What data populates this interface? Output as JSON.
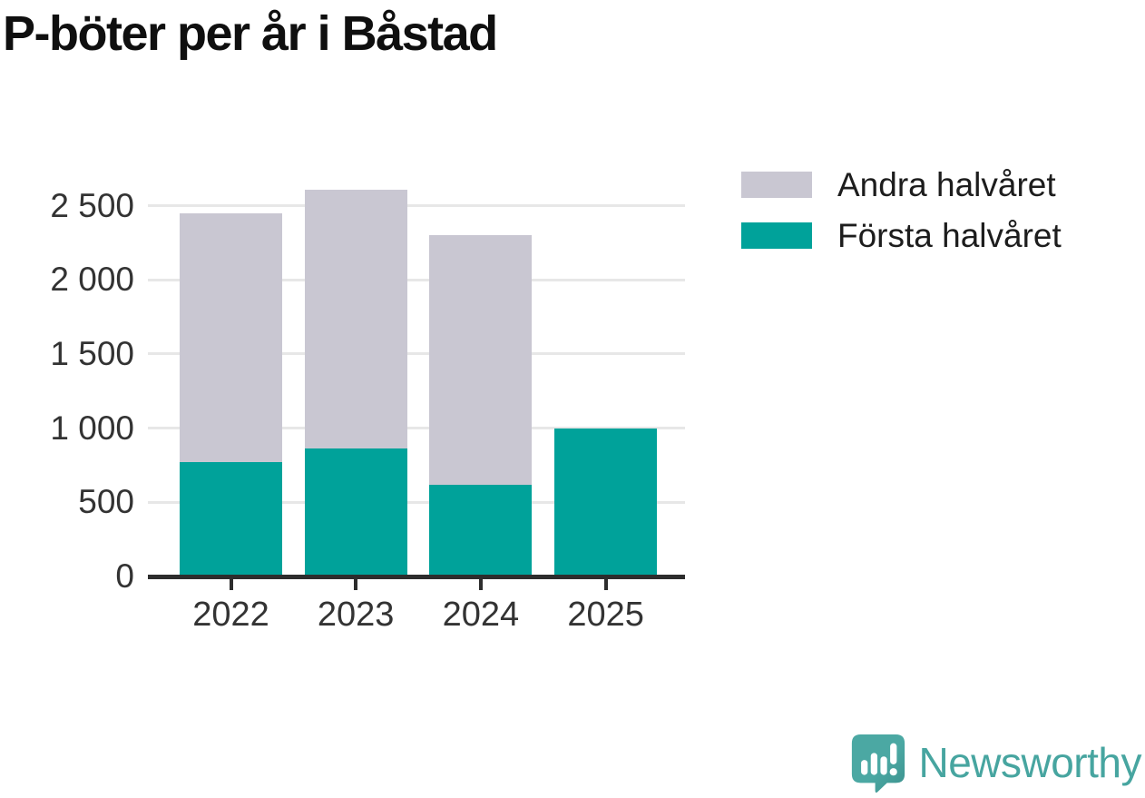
{
  "title": "P-böter per år i Båstad",
  "colors": {
    "first_half": "#00a29a",
    "second_half": "#c9c7d2",
    "gridline": "#e7e7e7",
    "axis": "#2d2d2d",
    "tick_label": "#333333",
    "title_text": "#0f0f0f",
    "brand_teal": "#47a5a0"
  },
  "legend": [
    {
      "label": "Andra halvåret",
      "color": "#c9c7d2"
    },
    {
      "label": "Första halvåret",
      "color": "#00a29a"
    }
  ],
  "chart_data": {
    "type": "bar",
    "stacked": true,
    "title": "P-böter per år i Båstad",
    "categories": [
      "2022",
      "2023",
      "2024",
      "2025"
    ],
    "series": [
      {
        "name": "Första halvåret",
        "color": "#00a29a",
        "values": [
          770,
          865,
          620,
          1000
        ]
      },
      {
        "name": "Andra halvåret",
        "color": "#c9c7d2",
        "values": [
          1680,
          1740,
          1680,
          0
        ]
      }
    ],
    "totals": [
      2450,
      2605,
      2300,
      1000
    ],
    "xlabel": "",
    "ylabel": "",
    "ylim": [
      0,
      2600
    ],
    "yticks": [
      0,
      500,
      1000,
      1500,
      2000,
      2500
    ],
    "ytick_labels": [
      "0",
      "500",
      "1 000",
      "1 500",
      "2 000",
      "2 500"
    ],
    "grid": true,
    "legend_position": "top-right"
  },
  "footer": {
    "brand": "Newsworthy"
  }
}
